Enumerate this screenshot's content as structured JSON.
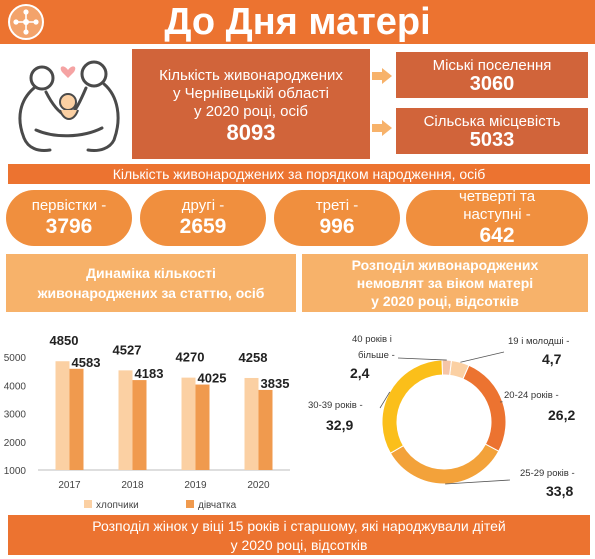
{
  "header": {
    "title": "До Дня матері",
    "logo_icon": "network-nodes-icon"
  },
  "illustration": {
    "icon": "family-silhouette-icon"
  },
  "births_total": {
    "label_line1": "Кількість живонароджених",
    "label_line2": "у Чернівецькій області",
    "label_line3": "у 2020 році, осіб",
    "value": "8093"
  },
  "urban": {
    "label": "Міські поселення",
    "value": "3060"
  },
  "rural": {
    "label": "Сільська місцевість",
    "value": "5033"
  },
  "birth_order": {
    "title": "Кількість живонароджених за порядком народження, осіб",
    "items": [
      {
        "label": "первістки -",
        "value": "3796"
      },
      {
        "label": "другі -",
        "value": "2659"
      },
      {
        "label": "треті -",
        "value": "996"
      },
      {
        "label": "четверті та наступні -",
        "value": "642"
      }
    ]
  },
  "dynamics_header": {
    "line1": "Динаміка кількості",
    "line2": "живонароджених за статтю, осіб"
  },
  "age_header": {
    "line1": "Розподіл живонароджених",
    "line2": "немовлят за віком матері",
    "line3": "у 2020 році, відсотків"
  },
  "footer": {
    "line1": "Розподіл жінок у віці 15 років і старшому, які народжували дітей",
    "line2": "у 2020 році, відсотків"
  },
  "colors": {
    "orange": "#ec7330",
    "dark_orange": "#d1643a",
    "pill": "#f08f3e",
    "light_orange": "#f7b26a",
    "boys": "#fbd0a3",
    "girls": "#f09a4e",
    "yellow": "#fbbf1a"
  },
  "chart_data": [
    {
      "type": "bar",
      "categories": [
        "2017",
        "2018",
        "2019",
        "2020"
      ],
      "series": [
        {
          "name": "хлопчики",
          "values": [
            4850,
            4527,
            4270,
            4258
          ]
        },
        {
          "name": "дівчатка",
          "values": [
            4583,
            4183,
            4025,
            3835
          ]
        }
      ],
      "yticks": [
        1000,
        2000,
        3000,
        4000,
        5000
      ],
      "ylim": [
        1000,
        5000
      ],
      "legend": "bottom"
    },
    {
      "type": "pie",
      "donut": true,
      "slices": [
        {
          "label": "19 і молодші -",
          "value": "4,7",
          "share": 4.7
        },
        {
          "label": "20-24 років -",
          "value": "26,2",
          "share": 26.2
        },
        {
          "label": "25-29 років -",
          "value": "33,8",
          "share": 33.8
        },
        {
          "label": "30-39 років -",
          "value": "32,9",
          "share": 32.9
        },
        {
          "label": "40 років і більше -",
          "value": "2,4",
          "share": 2.4
        }
      ],
      "slice_colors": [
        "#fbd0a3",
        "#ec7330",
        "#f3a23a",
        "#fbbf1a",
        "#f5c5a8"
      ]
    }
  ]
}
